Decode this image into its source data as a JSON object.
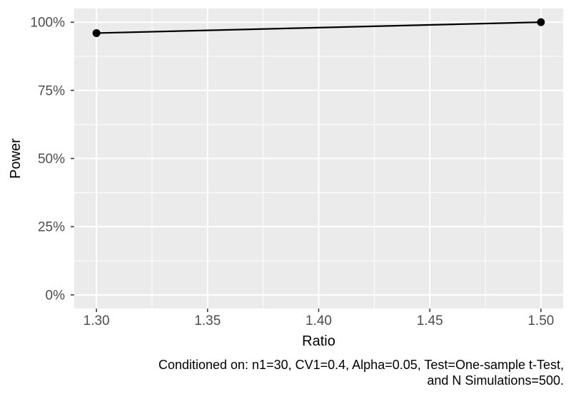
{
  "chart_data": {
    "type": "line",
    "title": "",
    "xlabel": "Ratio",
    "ylabel": "Power",
    "points": [
      {
        "x": 1.3,
        "y": 0.96
      },
      {
        "x": 1.5,
        "y": 1.0
      }
    ],
    "series": [
      {
        "name": "Power",
        "x": [
          1.3,
          1.5
        ],
        "values": [
          0.96,
          1.0
        ]
      }
    ],
    "xlim": [
      1.29,
      1.51
    ],
    "ylim": [
      -0.05,
      1.05
    ],
    "x_ticks": {
      "values": [
        1.3,
        1.35,
        1.4,
        1.45,
        1.5
      ],
      "labels": [
        "1.30",
        "1.35",
        "1.40",
        "1.45",
        "1.50"
      ]
    },
    "y_ticks": {
      "values": [
        0,
        0.25,
        0.5,
        0.75,
        1.0
      ],
      "labels": [
        "0%",
        "25%",
        "50%",
        "75%",
        "100%"
      ]
    },
    "x_minor": [
      1.325,
      1.375,
      1.425,
      1.475
    ],
    "y_minor": [
      0.125,
      0.375,
      0.625,
      0.875
    ],
    "grid": true,
    "legend": "none",
    "caption_lines": [
      "Conditioned on: n1=30, CV1=0.4, Alpha=0.05, Test=One-sample t-Test,",
      "and N Simulations=500."
    ]
  },
  "colors": {
    "panel_background": "#EBEBEB",
    "grid_major": "#FFFFFF",
    "grid_minor": "#FFFFFF",
    "tick_mark": "#333333",
    "tick_label": "#4D4D4D",
    "axis_title": "#000000",
    "line": "#000000",
    "point": "#000000",
    "caption": "#000000",
    "figure_background": "#FFFFFF"
  }
}
